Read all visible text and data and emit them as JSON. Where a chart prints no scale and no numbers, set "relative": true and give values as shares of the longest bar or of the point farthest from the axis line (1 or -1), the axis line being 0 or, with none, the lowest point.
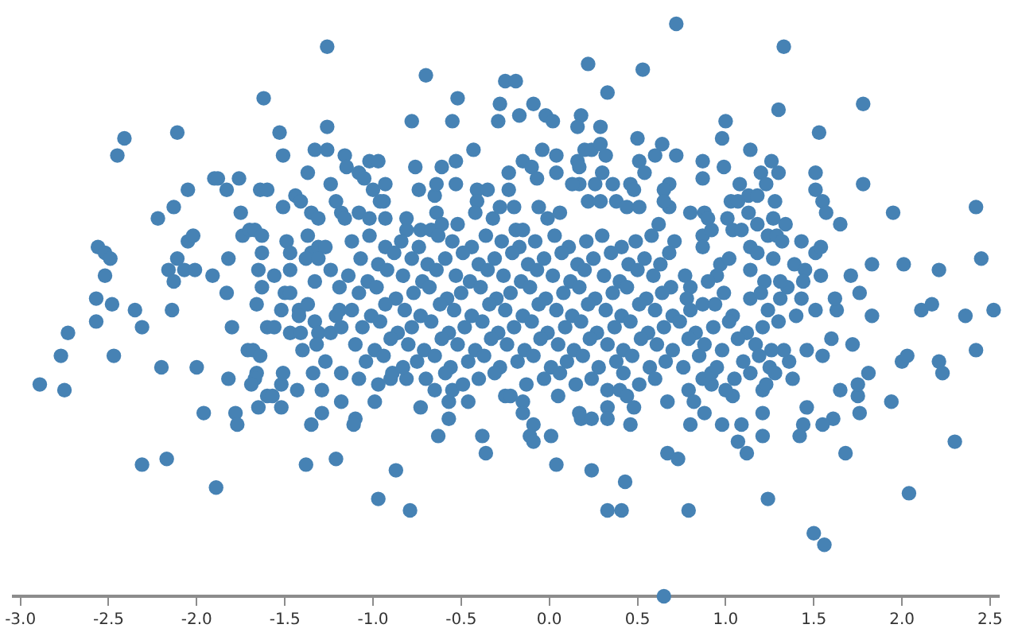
{
  "chart_data": {
    "type": "scatter",
    "relative": true,
    "tick_labels": "x",
    "marker": "circle",
    "color": "#4682b4",
    "xlim": [
      -3.04,
      2.55
    ],
    "xticks": [
      {
        "value": -3,
        "label": "-3.0"
      },
      {
        "value": -2.5,
        "label": "-2.5"
      },
      {
        "value": -2,
        "label": "-2.0"
      },
      {
        "value": -1.5,
        "label": "-1.5"
      },
      {
        "value": -1,
        "label": "-1.0"
      },
      {
        "value": -0.5,
        "label": "-0.5"
      },
      {
        "value": 0,
        "label": "0.0"
      },
      {
        "value": 0.5,
        "label": "0.5"
      },
      {
        "value": 1,
        "label": "1.0"
      },
      {
        "value": 1.5,
        "label": "1.5"
      },
      {
        "value": 2,
        "label": "2.0"
      },
      {
        "value": 2.5,
        "label": "2.5"
      }
    ],
    "x": [
      -1.26,
      -1.62,
      -2.41,
      -2.45,
      -2.11,
      -1.53,
      -1.51,
      -1.26,
      -1.26,
      -1.33,
      -1.37,
      -1.9,
      -1.88,
      -1.76,
      -2.05,
      -1.83,
      -1.64,
      -1.6,
      -2.13,
      -2.22,
      -1.75,
      -1.51,
      -1.44,
      -1.41,
      -1.35,
      -1.31,
      -1.24,
      -1.21,
      -1.18,
      -2.56,
      -2.52,
      -2.49,
      -2.52,
      -2.57,
      -2.48,
      -2.35,
      -2.16,
      -2.11,
      -2.07,
      -2.01,
      -2.13,
      -2.05,
      -2.02,
      -1.91,
      -1.82,
      -1.83,
      -1.74,
      -1.7,
      -1.67,
      -1.63,
      -1.63,
      -1.65,
      -1.56,
      -1.63,
      -1.66,
      -1.5,
      -1.47,
      -1.52,
      -1.42,
      -1.49,
      -1.47,
      -1.47,
      -1.37,
      -1.35,
      -1.31,
      -1.27,
      -1.38,
      -1.31,
      -1.33,
      -1.24,
      -1.37,
      -1.19,
      -1.19,
      -2.14,
      -2.57,
      -2.31,
      -2.73,
      -2.77,
      -2.47,
      -2.89,
      -2.75,
      -2.2,
      -2.0,
      -1.8,
      -1.82,
      -1.96,
      -2.31,
      -2.17,
      -1.89,
      -1.78,
      -1.77,
      -1.71,
      -1.68,
      -1.64,
      -1.66,
      -1.67,
      -1.69,
      -1.65,
      -1.6,
      -1.57,
      -1.52,
      -1.52,
      -1.51,
      -1.6,
      -1.56,
      -1.47,
      -1.42,
      -1.41,
      -1.4,
      -1.43,
      -1.35,
      -1.38,
      -1.21,
      -1.34,
      -1.29,
      -1.29,
      -1.27,
      -1.33,
      -1.31,
      -1.32,
      -1.24,
      -1.21,
      -1.18,
      -1.18,
      -1.18,
      -0.97,
      -0.79,
      -0.87,
      -0.63,
      -0.38,
      -0.36,
      -0.73,
      -0.57,
      -0.57,
      -0.46,
      -1.1,
      -1.11,
      -0.99,
      -0.25,
      -0.22,
      -0.15,
      -0.15,
      -0.09,
      -0.11,
      -0.09,
      0.01,
      0.04,
      0.05,
      0.17,
      0.18,
      0.24,
      0.24,
      0.33,
      0.33,
      0.33,
      0.4,
      0.44,
      0.48,
      0.46,
      0.43,
      0.33,
      0.41,
      0.67,
      0.67,
      0.65,
      -0.9,
      -0.89,
      -0.81,
      -0.65,
      -0.55,
      0.79,
      1.24,
      1.5,
      1.56,
      2.04,
      2.3,
      1.68,
      1.94,
      1.76,
      1.75,
      1.75,
      1.81,
      1.65,
      1.61,
      1.55,
      1.46,
      1.44,
      1.42,
      1.38,
      1.72,
      1.6,
      1.55,
      1.46,
      1.36,
      1.33,
      1.83,
      2.0,
      2.03,
      2.21,
      2.23,
      2.36,
      2.42,
      2.11,
      2.17,
      1.51,
      1.63,
      1.21,
      1.21,
      1.12,
      1.09,
      1.07,
      0.98,
      1.04,
      1.0,
      1.05,
      1.14,
      1.21,
      1.23,
      1.25,
      1.28,
      0.88,
      0.8,
      0.79,
      0.82,
      0.73,
      0.92,
      0.87,
      0.92,
      0.76,
      2.52,
      0.72,
      1.33,
      1.78,
      1.3,
      1.53,
      1.0,
      0.98,
      0.72,
      0.87,
      0.87,
      1.14,
      0.99,
      1.2,
      1.26,
      1.3,
      1.51,
      1.51,
      1.78,
      1.55,
      1.57,
      1.65,
      1.95,
      2.42,
      2.45,
      1.83,
      2.01,
      2.21,
      1.71,
      1.76,
      1.43,
      1.34,
      1.08,
      1.23,
      1.13,
      1.18,
      1.03,
      1.07,
      0.8,
      0.88,
      0.9,
      1.01,
      1.04,
      1.09,
      1.13,
      1.18,
      1.28,
      1.27,
      0.68,
      0.68,
      0.71,
      0.68,
      0.87,
      0.92,
      0.87,
      1.14,
      1.18,
      1.24,
      1.29,
      1.32,
      1.39,
      1.45,
      1.51,
      1.54,
      1.54,
      1.44,
      1.43,
      1.35,
      1.31,
      1.27,
      1.22,
      1.14,
      0.97,
      1.02,
      0.95,
      0.77,
      0.8,
      0.78,
      0.69,
      0.9,
      0.99,
      0.87,
      0.94,
      1.14,
      1.2,
      1.31,
      1.62,
      -0.7,
      0.22,
      0.53,
      -0.25,
      -0.19,
      -0.52,
      -0.78,
      -0.55,
      -0.28,
      -0.29,
      -0.17,
      -0.09,
      -0.02,
      0.02,
      0.18,
      0.16,
      0.33,
      0.29,
      -0.43,
      -0.53,
      -0.76,
      -0.61,
      -1.16,
      -1.15,
      -1.08,
      -1.05,
      -1.02,
      -0.97,
      -1.0,
      -0.93,
      -0.94,
      -0.74,
      -0.65,
      -0.64,
      -0.64,
      -0.53,
      -0.41,
      -0.35,
      -0.41,
      -0.23,
      -0.23,
      -0.15,
      -0.1,
      -0.07,
      -0.04,
      0.04,
      0.04,
      0.16,
      0.2,
      0.24,
      0.32,
      0.29,
      0.17,
      0.26,
      0.3,
      0.17,
      0.13,
      0.36,
      0.46,
      0.48,
      0.5,
      0.51,
      0.54,
      0.6,
      0.64,
      0.65,
      -1.16,
      -1.08,
      -1.02,
      -0.96,
      -0.93,
      -0.81,
      -0.81,
      -0.73,
      -0.67,
      -0.61,
      -0.52,
      -0.42,
      -0.32,
      -0.28,
      -0.2,
      -0.19,
      -0.15,
      -0.06,
      -0.01,
      0.06,
      0.22,
      0.29,
      0.38,
      0.44,
      0.51,
      0.62,
      0.65,
      -1.12,
      -1.02,
      -0.93,
      -0.84,
      -0.74,
      -0.63,
      -0.55,
      -0.44,
      -0.36,
      -0.27,
      -0.17,
      -0.08,
      0.03,
      0.11,
      0.21,
      0.3,
      0.41,
      0.49,
      0.58,
      -1.07,
      -0.97,
      -0.88,
      -0.78,
      -0.69,
      -0.59,
      -0.49,
      -0.4,
      -0.31,
      -0.21,
      -0.12,
      -0.03,
      0.07,
      0.16,
      0.25,
      0.35,
      0.45,
      0.54,
      0.63,
      -1.14,
      -1.03,
      -0.92,
      -0.83,
      -0.72,
      -0.64,
      -0.53,
      -0.45,
      -0.35,
      -0.26,
      -0.16,
      -0.07,
      0.02,
      0.12,
      0.2,
      0.31,
      0.4,
      0.5,
      0.59,
      -1.08,
      -0.98,
      -0.87,
      -0.77,
      -0.68,
      -0.58,
      -0.5,
      -0.39,
      -0.3,
      -0.22,
      -0.11,
      -0.02,
      0.08,
      0.17,
      0.26,
      0.36,
      0.44,
      0.55,
      0.64,
      -1.12,
      -1.01,
      -0.93,
      -0.82,
      -0.73,
      -0.62,
      -0.54,
      -0.44,
      -0.34,
      -0.25,
      -0.15,
      -0.06,
      0.04,
      0.13,
      0.22,
      0.32,
      0.41,
      0.51,
      0.6,
      0.7,
      0.8,
      1.04,
      1.24,
      1.4,
      -1.06,
      -0.96,
      -0.86,
      -0.78,
      -0.67,
      -0.57,
      -0.48,
      -0.38,
      -0.29,
      -0.2,
      -0.1,
      -0.01,
      0.09,
      0.18,
      0.27,
      0.37,
      0.46,
      0.56,
      0.65,
      0.74,
      0.83,
      0.93,
      1.02,
      1.12,
      1.21,
      1.3,
      -1.1,
      -0.99,
      -0.9,
      -0.8,
      -0.71,
      -0.61,
      -0.52,
      -0.42,
      -0.33,
      -0.24,
      -0.14,
      -0.05,
      0.05,
      0.14,
      0.23,
      0.33,
      0.42,
      0.52,
      0.61,
      0.7,
      0.79,
      0.88,
      0.98,
      1.07,
      1.17,
      1.26,
      -1.04,
      -0.94,
      -0.83,
      -0.75,
      -0.65,
      -0.56,
      -0.46,
      -0.37,
      -0.28,
      -0.18,
      -0.09,
      0.01,
      0.1,
      0.19,
      0.28,
      0.38,
      0.47,
      0.57,
      0.66,
      0.85,
      0.95,
      1.1,
      1.19,
      -1.08,
      -0.97,
      -0.7,
      -0.59,
      -0.49,
      -0.4,
      -0.31,
      -0.13,
      -0.03,
      0.06,
      0.15,
      0.24,
      0.42,
      0.51,
      0.6
    ],
    "values": [
      0.96,
      0.87,
      0.8,
      0.77,
      0.81,
      0.81,
      0.77,
      0.82,
      0.78,
      0.78,
      0.74,
      0.73,
      0.73,
      0.73,
      0.71,
      0.71,
      0.71,
      0.71,
      0.68,
      0.66,
      0.67,
      0.68,
      0.7,
      0.69,
      0.67,
      0.66,
      0.72,
      0.69,
      0.67,
      0.61,
      0.6,
      0.59,
      0.56,
      0.52,
      0.51,
      0.5,
      0.57,
      0.59,
      0.57,
      0.57,
      0.55,
      0.62,
      0.63,
      0.56,
      0.59,
      0.53,
      0.63,
      0.64,
      0.64,
      0.63,
      0.6,
      0.57,
      0.56,
      0.54,
      0.51,
      0.53,
      0.53,
      0.5,
      0.5,
      0.62,
      0.6,
      0.57,
      0.63,
      0.6,
      0.61,
      0.61,
      0.59,
      0.59,
      0.55,
      0.57,
      0.51,
      0.54,
      0.5,
      0.5,
      0.48,
      0.47,
      0.46,
      0.42,
      0.42,
      0.37,
      0.36,
      0.4,
      0.4,
      0.47,
      0.38,
      0.32,
      0.23,
      0.24,
      0.19,
      0.32,
      0.3,
      0.43,
      0.43,
      0.42,
      0.39,
      0.38,
      0.37,
      0.33,
      0.35,
      0.35,
      0.33,
      0.37,
      0.39,
      0.47,
      0.47,
      0.46,
      0.49,
      0.46,
      0.43,
      0.36,
      0.3,
      0.23,
      0.24,
      0.39,
      0.36,
      0.32,
      0.41,
      0.48,
      0.46,
      0.44,
      0.46,
      0.49,
      0.47,
      0.39,
      0.34,
      0.17,
      0.15,
      0.22,
      0.28,
      0.28,
      0.25,
      0.33,
      0.31,
      0.34,
      0.34,
      0.31,
      0.3,
      0.34,
      0.35,
      0.35,
      0.34,
      0.32,
      0.3,
      0.28,
      0.27,
      0.28,
      0.23,
      0.35,
      0.32,
      0.31,
      0.31,
      0.22,
      0.33,
      0.31,
      0.36,
      0.36,
      0.35,
      0.33,
      0.3,
      0.2,
      0.15,
      0.15,
      0.34,
      0.25,
      0,
      0.38,
      0.39,
      0.38,
      0.36,
      0.36,
      0.15,
      0.17,
      0.11,
      0.09,
      0.18,
      0.27,
      0.25,
      0.34,
      0.32,
      0.35,
      0.37,
      0.39,
      0.36,
      0.31,
      0.3,
      0.33,
      0.3,
      0.28,
      0.38,
      0.44,
      0.45,
      0.42,
      0.43,
      0.41,
      0.43,
      0.49,
      0.41,
      0.42,
      0.41,
      0.39,
      0.49,
      0.43,
      0.5,
      0.51,
      0.5,
      0.5,
      0.32,
      0.28,
      0.25,
      0.3,
      0.27,
      0.3,
      0.35,
      0.36,
      0.38,
      0.39,
      0.36,
      0.37,
      0.4,
      0.39,
      0.32,
      0.3,
      0.36,
      0.34,
      0.24,
      0.37,
      0.38,
      0.39,
      0.4,
      0.5,
      1.0,
      0.96,
      0.86,
      0.85,
      0.81,
      0.83,
      0.8,
      0.77,
      0.76,
      0.73,
      0.78,
      0.75,
      0.74,
      0.76,
      0.74,
      0.74,
      0.71,
      0.72,
      0.69,
      0.67,
      0.65,
      0.67,
      0.68,
      0.59,
      0.58,
      0.58,
      0.57,
      0.56,
      0.53,
      0.62,
      0.65,
      0.72,
      0.72,
      0.7,
      0.7,
      0.69,
      0.69,
      0.67,
      0.67,
      0.66,
      0.66,
      0.64,
      0.64,
      0.67,
      0.65,
      0.69,
      0.66,
      0.72,
      0.68,
      0.62,
      0.6,
      0.63,
      0.64,
      0.61,
      0.61,
      0.6,
      0.63,
      0.63,
      0.62,
      0.58,
      0.57,
      0.6,
      0.61,
      0.56,
      0.55,
      0.52,
      0.54,
      0.55,
      0.59,
      0.55,
      0.57,
      0.58,
      0.59,
      0.56,
      0.56,
      0.54,
      0.52,
      0.54,
      0.55,
      0.53,
      0.51,
      0.51,
      0.52,
      0.53,
      0.52,
      0.52,
      0.91,
      0.93,
      0.92,
      0.9,
      0.9,
      0.87,
      0.83,
      0.83,
      0.86,
      0.83,
      0.84,
      0.86,
      0.84,
      0.83,
      0.84,
      0.82,
      0.88,
      0.82,
      0.78,
      0.76,
      0.75,
      0.75,
      0.77,
      0.75,
      0.74,
      0.73,
      0.76,
      0.76,
      0.71,
      0.72,
      0.69,
      0.71,
      0.7,
      0.72,
      0.67,
      0.72,
      0.71,
      0.71,
      0.69,
      0.74,
      0.71,
      0.76,
      0.75,
      0.73,
      0.78,
      0.77,
      0.74,
      0.76,
      0.78,
      0.78,
      0.77,
      0.79,
      0.75,
      0.72,
      0.74,
      0.72,
      0.72,
      0.72,
      0.72,
      0.71,
      0.8,
      0.76,
      0.74,
      0.77,
      0.79,
      0.71,
      0.66,
      0.67,
      0.66,
      0.69,
      0.66,
      0.66,
      0.64,
      0.64,
      0.64,
      0.65,
      0.65,
      0.67,
      0.66,
      0.68,
      0.68,
      0.64,
      0.64,
      0.68,
      0.66,
      0.67,
      0.69,
      0.69,
      0.69,
      0.68,
      0.68,
      0.65,
      0.69,
      0.62,
      0.63,
      0.61,
      0.62,
      0.61,
      0.63,
      0.62,
      0.61,
      0.63,
      0.62,
      0.61,
      0.62,
      0.63,
      0.61,
      0.62,
      0.63,
      0.61,
      0.62,
      0.63,
      0.59,
      0.58,
      0.6,
      0.59,
      0.58,
      0.59,
      0.6,
      0.58,
      0.59,
      0.6,
      0.58,
      0.59,
      0.6,
      0.58,
      0.59,
      0.6,
      0.58,
      0.59,
      0.58,
      0.56,
      0.55,
      0.57,
      0.56,
      0.55,
      0.57,
      0.56,
      0.55,
      0.57,
      0.56,
      0.55,
      0.57,
      0.56,
      0.55,
      0.57,
      0.56,
      0.55,
      0.57,
      0.56,
      0.53,
      0.54,
      0.52,
      0.53,
      0.54,
      0.52,
      0.53,
      0.54,
      0.52,
      0.53,
      0.54,
      0.52,
      0.53,
      0.54,
      0.52,
      0.53,
      0.54,
      0.52,
      0.53,
      0.5,
      0.49,
      0.51,
      0.5,
      0.49,
      0.51,
      0.5,
      0.49,
      0.51,
      0.5,
      0.49,
      0.51,
      0.5,
      0.49,
      0.51,
      0.5,
      0.49,
      0.51,
      0.5,
      0.49,
      0.5,
      0.49,
      0.5,
      0.49,
      0.47,
      0.48,
      0.46,
      0.47,
      0.48,
      0.46,
      0.47,
      0.48,
      0.46,
      0.47,
      0.48,
      0.46,
      0.47,
      0.48,
      0.46,
      0.47,
      0.48,
      0.46,
      0.47,
      0.48,
      0.46,
      0.47,
      0.48,
      0.46,
      0.47,
      0.48,
      0.44,
      0.43,
      0.45,
      0.44,
      0.43,
      0.45,
      0.44,
      0.43,
      0.45,
      0.44,
      0.43,
      0.45,
      0.44,
      0.43,
      0.45,
      0.44,
      0.43,
      0.45,
      0.44,
      0.43,
      0.45,
      0.44,
      0.43,
      0.45,
      0.44,
      0.43,
      0.41,
      0.42,
      0.4,
      0.41,
      0.42,
      0.4,
      0.41,
      0.42,
      0.4,
      0.41,
      0.42,
      0.4,
      0.41,
      0.42,
      0.4,
      0.41,
      0.42,
      0.4,
      0.41,
      0.42,
      0.4,
      0.41,
      0.42,
      0.38,
      0.37,
      0.38,
      0.39,
      0.37,
      0.38,
      0.39,
      0.37,
      0.38,
      0.39,
      0.37,
      0.38,
      0.39,
      0.37,
      0.38
    ]
  }
}
